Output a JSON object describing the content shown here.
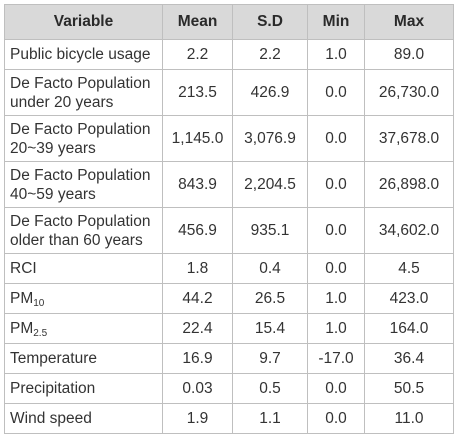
{
  "table": {
    "headers": [
      "Variable",
      "Mean",
      "S.D",
      "Min",
      "Max"
    ],
    "rows": [
      {
        "var_main": "Public bicycle usage",
        "var_sub": "",
        "mean": "2.2",
        "sd": "2.2",
        "min": "1.0",
        "max": "89.0"
      },
      {
        "var_main": "De Facto Population",
        "var_line2": "under 20 years",
        "var_sub": "",
        "mean": "213.5",
        "sd": "426.9",
        "min": "0.0",
        "max": "26,730.0"
      },
      {
        "var_main": "De Facto Population",
        "var_line2": "20~39 years",
        "var_sub": "",
        "mean": "1,145.0",
        "sd": "3,076.9",
        "min": "0.0",
        "max": "37,678.0"
      },
      {
        "var_main": "De Facto Population",
        "var_line2": "40~59 years",
        "var_sub": "",
        "mean": "843.9",
        "sd": "2,204.5",
        "min": "0.0",
        "max": "26,898.0"
      },
      {
        "var_main": "De Facto Population",
        "var_line2": "older than 60 years",
        "var_sub": "",
        "mean": "456.9",
        "sd": "935.1",
        "min": "0.0",
        "max": "34,602.0"
      },
      {
        "var_main": "RCI",
        "var_sub": "",
        "mean": "1.8",
        "sd": "0.4",
        "min": "0.0",
        "max": "4.5"
      },
      {
        "var_main": "PM",
        "var_sub": "10",
        "mean": "44.2",
        "sd": "26.5",
        "min": "1.0",
        "max": "423.0"
      },
      {
        "var_main": "PM",
        "var_sub": "2.5",
        "mean": "22.4",
        "sd": "15.4",
        "min": "1.0",
        "max": "164.0"
      },
      {
        "var_main": "Temperature",
        "var_sub": "",
        "mean": "16.9",
        "sd": "9.7",
        "min": "-17.0",
        "max": "36.4"
      },
      {
        "var_main": "Precipitation",
        "var_sub": "",
        "mean": "0.03",
        "sd": "0.5",
        "min": "0.0",
        "max": "50.5"
      },
      {
        "var_main": "Wind speed",
        "var_sub": "",
        "mean": "1.9",
        "sd": "1.1",
        "min": "0.0",
        "max": "11.0"
      }
    ]
  }
}
